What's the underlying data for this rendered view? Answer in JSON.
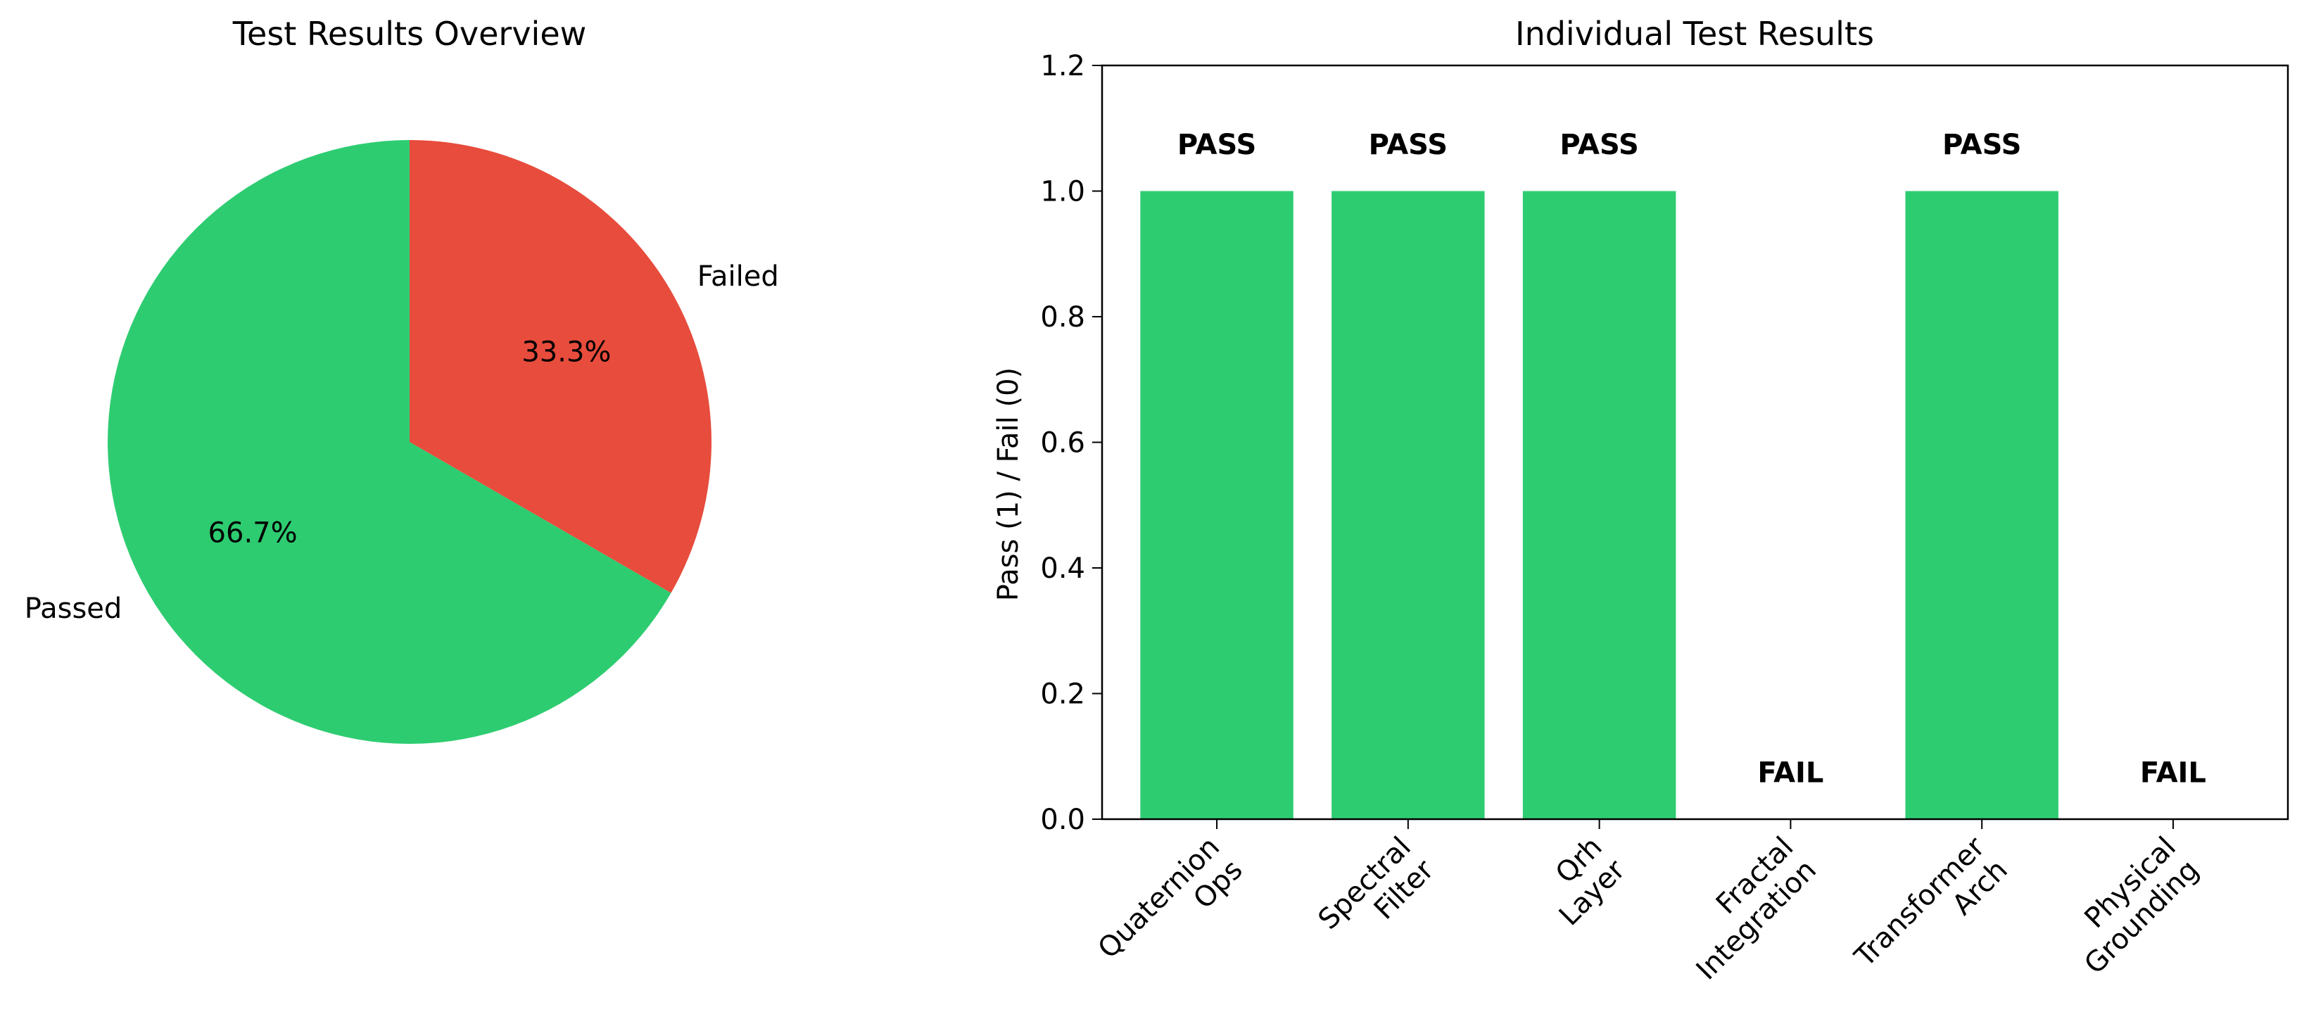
{
  "chart_data": [
    {
      "type": "pie",
      "title": "Test Results Overview",
      "labels": [
        "Passed",
        "Failed"
      ],
      "values": [
        4,
        2
      ],
      "percent_labels": [
        "66.7%",
        "33.3%"
      ],
      "colors": [
        "#2ecc71",
        "#e74c3c"
      ]
    },
    {
      "type": "bar",
      "title": "Individual Test Results",
      "ylabel": "Pass (1) / Fail (0)",
      "xlabel": "",
      "categories": [
        [
          "Quaternion",
          "Ops"
        ],
        [
          "Spectral",
          "Filter"
        ],
        [
          "Qrh",
          "Layer"
        ],
        [
          "Fractal",
          "Integration"
        ],
        [
          "Transformer",
          "Arch"
        ],
        [
          "Physical",
          "Grounding"
        ]
      ],
      "values": [
        1,
        1,
        1,
        0,
        1,
        0
      ],
      "bar_labels": [
        "PASS",
        "PASS",
        "PASS",
        "FAIL",
        "PASS",
        "FAIL"
      ],
      "ylim": [
        0,
        1.2
      ],
      "yticks": [
        "0.0",
        "0.2",
        "0.4",
        "0.6",
        "0.8",
        "1.0",
        "1.2"
      ],
      "bar_color": "#2ecc71",
      "grid": false
    }
  ]
}
